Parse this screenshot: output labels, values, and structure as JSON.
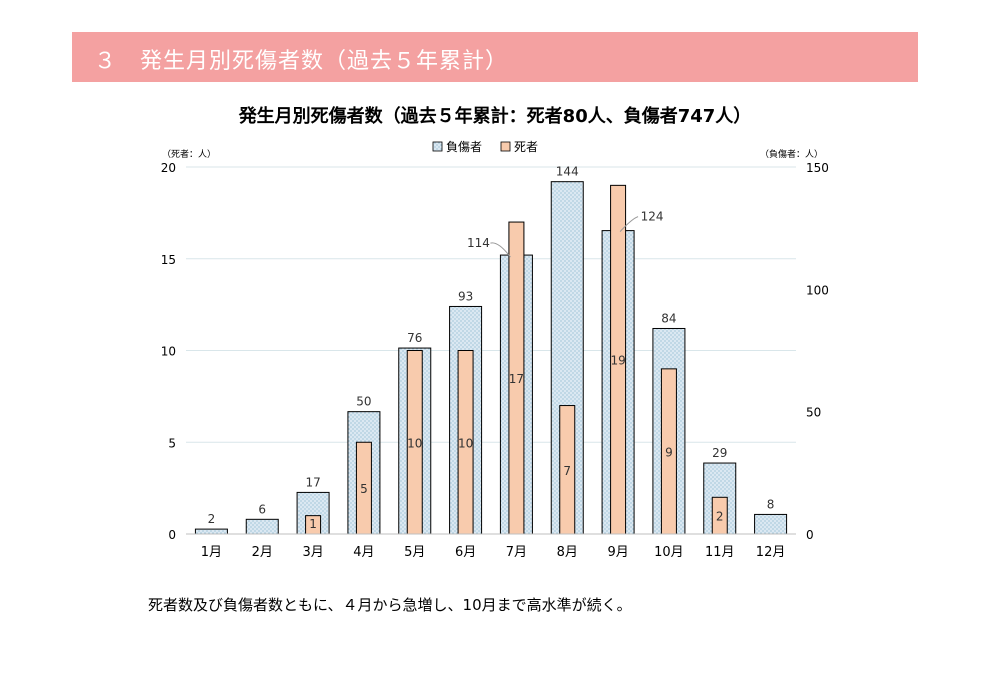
{
  "header": {
    "banner_text": "３　発生月別死傷者数（過去５年累計）"
  },
  "chart_data": {
    "type": "bar",
    "title": "発生月別死傷者数（過去５年累計：死者80人、負傷者747人）",
    "left_axis_unit": "（死者：人）",
    "right_axis_unit": "（負傷者：人）",
    "categories": [
      "1月",
      "2月",
      "3月",
      "4月",
      "5月",
      "6月",
      "7月",
      "8月",
      "9月",
      "10月",
      "11月",
      "12月"
    ],
    "series": [
      {
        "name": "負傷者",
        "axis": "right",
        "color": "#dbe8f2",
        "values": [
          2,
          6,
          17,
          50,
          76,
          93,
          114,
          144,
          124,
          84,
          29,
          8
        ]
      },
      {
        "name": "死者",
        "axis": "left",
        "color": "#f8cbad",
        "values": [
          0,
          0,
          1,
          5,
          10,
          10,
          17,
          7,
          19,
          9,
          2,
          0
        ]
      }
    ],
    "left_axis": {
      "ylim": [
        0,
        20
      ],
      "ticks": [
        "0",
        "5",
        "10",
        "15",
        "20"
      ]
    },
    "right_axis": {
      "ylim": [
        0,
        150
      ],
      "ticks": [
        "0",
        "50",
        "100",
        "150"
      ]
    },
    "legend_position": "top-center",
    "grid": true
  },
  "footer": {
    "caption": "死者数及び負傷者数ともに、４月から急増し、10月まで高水準が続く。"
  }
}
